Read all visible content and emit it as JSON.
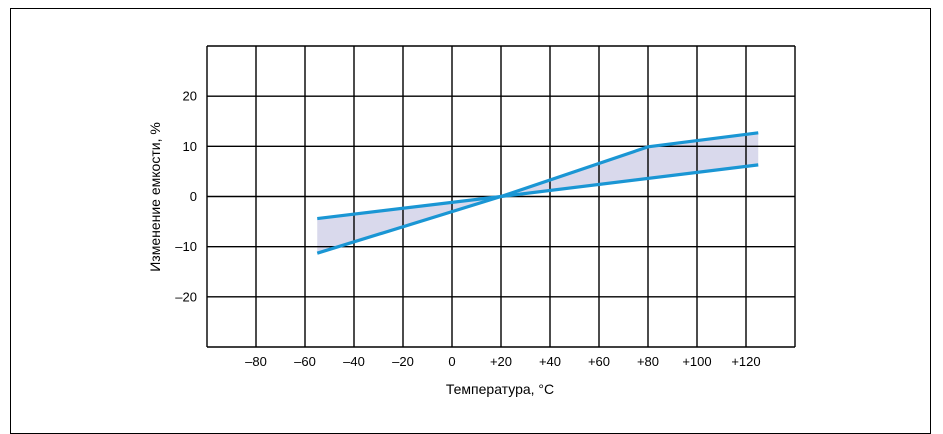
{
  "chart_data": {
    "type": "area",
    "xlabel": "Температура, °С",
    "ylabel": "Изменение емкости, %",
    "x_ticks": [
      -80,
      -60,
      -40,
      -20,
      0,
      20,
      40,
      60,
      80,
      100,
      120
    ],
    "x_tick_labels": [
      "–80",
      "–60",
      "–40",
      "–20",
      "0",
      "+20",
      "+40",
      "+60",
      "+80",
      "+100",
      "+120"
    ],
    "y_ticks": [
      20,
      10,
      0,
      -10,
      -20
    ],
    "y_tick_labels": [
      "20",
      "10",
      "0",
      "–10",
      "–20"
    ],
    "xlim": [
      -100,
      140
    ],
    "ylim": [
      -30,
      30
    ],
    "grid": true,
    "line_color": "#1a96d4",
    "fill_color": "#d9d9ec",
    "series": [
      {
        "x": [
          -55,
          20,
          80,
          125
        ],
        "y": [
          -11.3,
          0,
          9.9,
          12.7
        ]
      },
      {
        "x": [
          -55,
          20,
          125
        ],
        "y": [
          -4.4,
          0,
          6.3
        ]
      }
    ]
  }
}
